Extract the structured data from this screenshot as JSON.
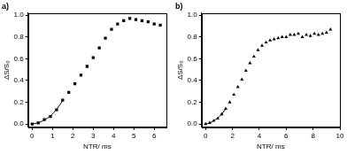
{
  "chart_data": [
    {
      "type": "scatter",
      "title": "a)",
      "x_label": "NTR/ ms",
      "y_label": "ΔS/S₀",
      "xlim": [
        -0.2,
        6.6
      ],
      "xticks": [
        0,
        1,
        2,
        3,
        4,
        5,
        6
      ],
      "ylim": [
        -0.03,
        1.02
      ],
      "yticks": [
        {
          "value": 0,
          "label": "0.0"
        },
        {
          "value": 0.2,
          "label": "0.2"
        },
        {
          "value": 0.4,
          "label": "0.4"
        },
        {
          "value": 0.6,
          "label": "0.6"
        },
        {
          "value": 0.8,
          "label": "0.8"
        },
        {
          "value": 1.0,
          "label": "1.0"
        }
      ],
      "grid": false,
      "series": [
        {
          "color": "#000000",
          "marker": "square",
          "line_style": "none",
          "x": [
            0,
            0.3,
            0.6,
            0.9,
            1.2,
            1.5,
            1.8,
            2.1,
            2.4,
            2.7,
            3.0,
            3.3,
            3.6,
            3.9,
            4.2,
            4.5,
            4.8,
            5.1,
            5.4,
            5.7,
            6.0,
            6.3
          ],
          "values": [
            0.0,
            0.01,
            0.04,
            0.07,
            0.13,
            0.22,
            0.29,
            0.37,
            0.45,
            0.53,
            0.61,
            0.7,
            0.79,
            0.87,
            0.92,
            0.95,
            0.97,
            0.96,
            0.95,
            0.94,
            0.92,
            0.91
          ]
        },
        {
          "color": "#000000",
          "marker": "none",
          "line_style": "solid",
          "x": [
            0,
            0.3,
            0.6,
            0.9,
            1.2,
            1.5
          ],
          "values": [
            0.0,
            0.012,
            0.038,
            0.075,
            0.135,
            0.215
          ]
        }
      ]
    },
    {
      "type": "scatter",
      "title": "b)",
      "x_label": "NTR/ ms",
      "y_label": "ΔS/S₀",
      "xlim": [
        -0.3,
        10
      ],
      "xticks": [
        0,
        2,
        4,
        6,
        8,
        10
      ],
      "ylim": [
        -0.03,
        1.02
      ],
      "yticks": [
        {
          "value": 0,
          "label": "0.0"
        },
        {
          "value": 0.2,
          "label": "0.2"
        },
        {
          "value": 0.4,
          "label": "0.4"
        },
        {
          "value": 0.6,
          "label": "0.6"
        },
        {
          "value": 0.8,
          "label": "0.8"
        },
        {
          "value": 1.0,
          "label": "1.0"
        }
      ],
      "grid": false,
      "series": [
        {
          "color": "#000000",
          "marker": "triangle",
          "line_style": "none",
          "x": [
            0,
            0.3,
            0.6,
            0.9,
            1.2,
            1.5,
            1.8,
            2.1,
            2.4,
            2.7,
            3.0,
            3.3,
            3.6,
            3.9,
            4.2,
            4.5,
            4.8,
            5.1,
            5.4,
            5.7,
            6.0,
            6.3,
            6.6,
            6.9,
            7.2,
            7.5,
            7.8,
            8.1,
            8.4,
            8.7,
            9.0,
            9.3
          ],
          "values": [
            0.0,
            0.01,
            0.03,
            0.05,
            0.09,
            0.14,
            0.2,
            0.27,
            0.34,
            0.41,
            0.49,
            0.56,
            0.62,
            0.68,
            0.72,
            0.75,
            0.77,
            0.78,
            0.79,
            0.8,
            0.8,
            0.82,
            0.82,
            0.83,
            0.8,
            0.82,
            0.81,
            0.83,
            0.82,
            0.83,
            0.84,
            0.87
          ]
        },
        {
          "color": "#000000",
          "marker": "none",
          "line_style": "solid",
          "x": [
            0,
            0.3,
            0.6,
            0.9,
            1.2,
            1.5
          ],
          "values": [
            0.0,
            0.01,
            0.03,
            0.055,
            0.09,
            0.14
          ]
        }
      ]
    }
  ]
}
